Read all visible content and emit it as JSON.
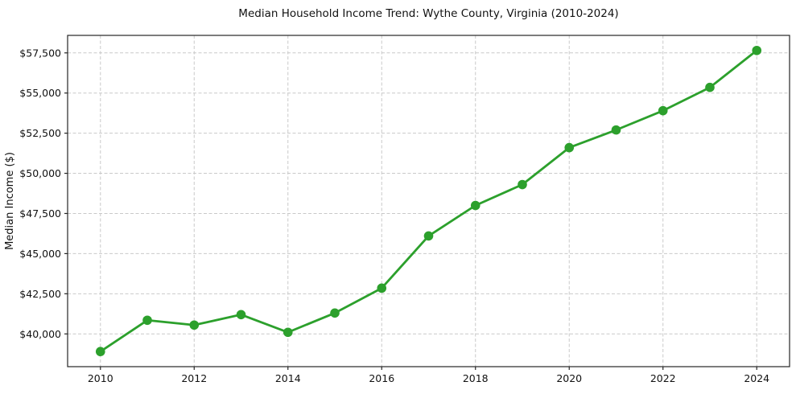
{
  "chart_data": {
    "type": "line",
    "title": "Median Household Income Trend: Wythe County, Virginia (2010-2024)",
    "xlabel": "",
    "ylabel": "Median Income ($)",
    "x": [
      2010,
      2011,
      2012,
      2013,
      2014,
      2015,
      2016,
      2017,
      2018,
      2019,
      2020,
      2021,
      2022,
      2023,
      2024
    ],
    "values": [
      38900,
      40850,
      40550,
      41200,
      40100,
      41300,
      42850,
      46100,
      48000,
      49300,
      51600,
      52700,
      53900,
      55350,
      57650
    ],
    "x_ticks": {
      "values": [
        2010,
        2012,
        2014,
        2016,
        2018,
        2020,
        2022,
        2024
      ],
      "labels": [
        "2010",
        "2012",
        "2014",
        "2016",
        "2018",
        "2020",
        "2022",
        "2024"
      ]
    },
    "y_ticks": {
      "values": [
        40000,
        42500,
        45000,
        47500,
        50000,
        52500,
        55000,
        57500
      ],
      "labels": [
        "$40,000",
        "$42,500",
        "$45,000",
        "$47,500",
        "$50,000",
        "$52,500",
        "$55,000",
        "$57,500"
      ]
    },
    "xlim": [
      2009.3,
      2024.7
    ],
    "ylim": [
      37960,
      58590
    ],
    "grid": true,
    "legend_position": "none",
    "marker": "circle",
    "colors": {
      "line": "#2ca02c",
      "marker": "#2ca02c",
      "grid": "#c9c9c9",
      "axis": "#262626",
      "text": "#111111",
      "background": "#ffffff"
    }
  }
}
